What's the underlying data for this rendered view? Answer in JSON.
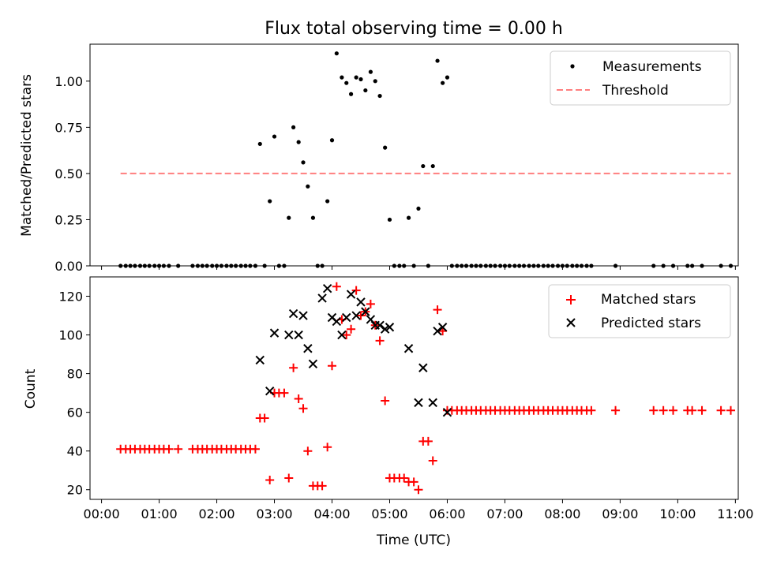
{
  "chart_data": [
    {
      "type": "scatter",
      "title": "Flux total observing time = 0.00 h",
      "xlabel": "",
      "ylabel": "Matched/Predicted stars",
      "xlim": [
        -0.2,
        11.05
      ],
      "ylim": [
        0,
        1.2
      ],
      "yticks": [
        0,
        0.25,
        0.5,
        0.75,
        1.0
      ],
      "ytick_labels": [
        "0.00",
        "0.25",
        "0.50",
        "0.75",
        "1.00"
      ],
      "grid": false,
      "legend": "top-right",
      "series": [
        {
          "name": "Measurements",
          "kind": "dots",
          "color": "#000000",
          "x": [
            0.33,
            0.42,
            0.5,
            0.58,
            0.67,
            0.75,
            0.83,
            0.92,
            1.0,
            1.08,
            1.17,
            1.33,
            1.58,
            1.67,
            1.75,
            1.83,
            1.92,
            2.0,
            2.08,
            2.17,
            2.25,
            2.33,
            2.42,
            2.5,
            2.58,
            2.67,
            2.75,
            2.83,
            2.92,
            3.0,
            3.08,
            3.17,
            3.25,
            3.33,
            3.42,
            3.5,
            3.58,
            3.67,
            3.75,
            3.83,
            3.92,
            4.0,
            4.08,
            4.17,
            4.25,
            4.33,
            4.42,
            4.5,
            4.58,
            4.67,
            4.75,
            4.83,
            4.92,
            5.0,
            5.08,
            5.17,
            5.25,
            5.33,
            5.42,
            5.5,
            5.58,
            5.67,
            5.75,
            5.83,
            5.92,
            6.0,
            6.08,
            6.17,
            6.25,
            6.33,
            6.42,
            6.5,
            6.58,
            6.67,
            6.75,
            6.83,
            6.92,
            7.0,
            7.08,
            7.17,
            7.25,
            7.33,
            7.42,
            7.5,
            7.58,
            7.67,
            7.75,
            7.83,
            7.92,
            8.0,
            8.08,
            8.17,
            8.25,
            8.33,
            8.42,
            8.5,
            8.92,
            9.58,
            9.75,
            9.92,
            10.17,
            10.25,
            10.42,
            10.75,
            10.92
          ],
          "y": [
            0,
            0,
            0,
            0,
            0,
            0,
            0,
            0,
            0,
            0,
            0,
            0,
            0,
            0,
            0,
            0,
            0,
            0,
            0,
            0,
            0,
            0,
            0,
            0,
            0,
            0,
            0.66,
            0,
            0.35,
            0.7,
            0,
            0,
            0.26,
            0.75,
            0.67,
            0.56,
            0.43,
            0.26,
            0,
            0,
            0.35,
            0.68,
            1.15,
            1.02,
            0.99,
            0.93,
            1.02,
            1.01,
            0.95,
            1.05,
            1.0,
            0.92,
            0.64,
            0.25,
            0,
            0,
            0,
            0.26,
            0,
            0.31,
            0.54,
            0,
            0.54,
            1.11,
            0.99,
            1.02,
            0,
            0,
            0,
            0,
            0,
            0,
            0,
            0,
            0,
            0,
            0,
            0,
            0,
            0,
            0,
            0,
            0,
            0,
            0,
            0,
            0,
            0,
            0,
            0,
            0,
            0,
            0,
            0,
            0,
            0,
            0,
            0,
            0,
            0,
            0,
            0,
            0,
            0,
            0
          ]
        },
        {
          "name": "Threshold",
          "kind": "dashed-line",
          "color": "#ff7f7f",
          "x": [
            0.33,
            10.92
          ],
          "y": [
            0.5,
            0.5
          ]
        }
      ]
    },
    {
      "type": "scatter",
      "title": "",
      "xlabel": "Time (UTC)",
      "ylabel": "Count",
      "xlim": [
        -0.2,
        11.05
      ],
      "ylim": [
        15,
        130
      ],
      "xticks": [
        0,
        1,
        2,
        3,
        4,
        5,
        6,
        7,
        8,
        9,
        10,
        11
      ],
      "xtick_labels": [
        "00:00",
        "01:00",
        "02:00",
        "03:00",
        "04:00",
        "05:00",
        "06:00",
        "07:00",
        "08:00",
        "09:00",
        "10:00",
        "11:00"
      ],
      "yticks": [
        20,
        40,
        60,
        80,
        100,
        120
      ],
      "ytick_labels": [
        "20",
        "40",
        "60",
        "80",
        "100",
        "120"
      ],
      "grid": false,
      "legend": "top-right",
      "series": [
        {
          "name": "Matched stars",
          "kind": "plus",
          "color": "#ff0000",
          "x": [
            0.33,
            0.42,
            0.5,
            0.58,
            0.67,
            0.75,
            0.83,
            0.92,
            1.0,
            1.08,
            1.17,
            1.33,
            1.58,
            1.67,
            1.75,
            1.83,
            1.92,
            2.0,
            2.08,
            2.17,
            2.25,
            2.33,
            2.42,
            2.5,
            2.58,
            2.67,
            2.75,
            2.83,
            2.92,
            3.0,
            3.08,
            3.17,
            3.25,
            3.33,
            3.42,
            3.5,
            3.58,
            3.67,
            3.75,
            3.83,
            3.92,
            4.0,
            4.08,
            4.17,
            4.25,
            4.33,
            4.42,
            4.5,
            4.58,
            4.67,
            4.75,
            4.83,
            4.92,
            5.0,
            5.08,
            5.17,
            5.25,
            5.33,
            5.42,
            5.5,
            5.58,
            5.67,
            5.75,
            5.83,
            5.92,
            6.0,
            6.08,
            6.17,
            6.25,
            6.33,
            6.42,
            6.5,
            6.58,
            6.67,
            6.75,
            6.83,
            6.92,
            7.0,
            7.08,
            7.17,
            7.25,
            7.33,
            7.42,
            7.5,
            7.58,
            7.67,
            7.75,
            7.83,
            7.92,
            8.0,
            8.08,
            8.17,
            8.25,
            8.33,
            8.42,
            8.5,
            8.92,
            9.58,
            9.75,
            9.92,
            10.17,
            10.25,
            10.42,
            10.75,
            10.92
          ],
          "y": [
            41,
            41,
            41,
            41,
            41,
            41,
            41,
            41,
            41,
            41,
            41,
            41,
            41,
            41,
            41,
            41,
            41,
            41,
            41,
            41,
            41,
            41,
            41,
            41,
            41,
            41,
            57,
            57,
            25,
            70,
            70,
            70,
            26,
            83,
            67,
            62,
            40,
            22,
            22,
            22,
            42,
            84,
            125,
            108,
            100,
            103,
            123,
            110,
            112,
            116,
            105,
            97,
            66,
            26,
            26,
            26,
            26,
            24,
            24,
            20,
            45,
            45,
            35,
            113,
            102,
            61,
            61,
            61,
            61,
            61,
            61,
            61,
            61,
            61,
            61,
            61,
            61,
            61,
            61,
            61,
            61,
            61,
            61,
            61,
            61,
            61,
            61,
            61,
            61,
            61,
            61,
            61,
            61,
            61,
            61,
            61,
            61,
            61,
            61,
            61,
            61,
            61,
            61,
            61,
            61
          ]
        },
        {
          "name": "Predicted stars",
          "kind": "x",
          "color": "#000000",
          "x": [
            2.75,
            2.92,
            3.0,
            3.25,
            3.33,
            3.42,
            3.5,
            3.58,
            3.67,
            3.83,
            3.92,
            4.0,
            4.08,
            4.17,
            4.25,
            4.33,
            4.42,
            4.5,
            4.58,
            4.67,
            4.75,
            4.83,
            4.92,
            5.0,
            5.33,
            5.5,
            5.58,
            5.75,
            5.83,
            5.92,
            6.0
          ],
          "y": [
            87,
            71,
            101,
            100,
            111,
            100,
            110,
            93,
            85,
            119,
            124,
            109,
            107,
            100,
            109,
            121,
            110,
            117,
            112,
            108,
            105,
            105,
            103,
            104,
            93,
            65,
            83,
            65,
            102,
            104,
            60
          ]
        }
      ]
    }
  ]
}
